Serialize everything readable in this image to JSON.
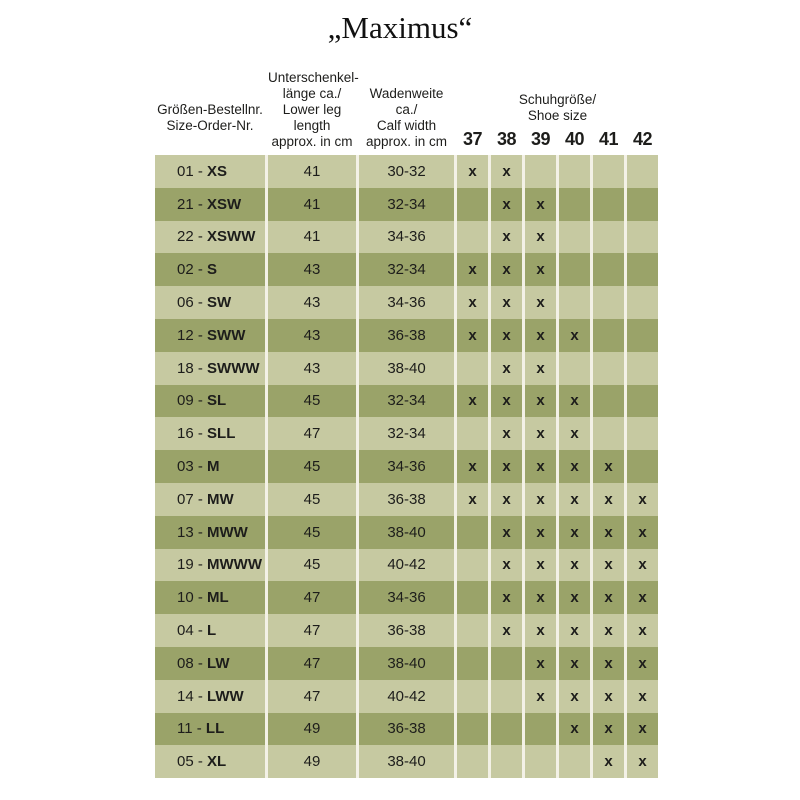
{
  "title": "„Maximus“",
  "label_separator": " - ",
  "colors": {
    "row_light": "#c6c9a1",
    "row_dark": "#9aa369",
    "separator": "#f3f1e6",
    "text": "#1d1d1b"
  },
  "chart_data": {
    "type": "table",
    "title": "„Maximus“",
    "header": {
      "col1_lines": [
        "Größen-Bestellnr.",
        "Size-Order-Nr."
      ],
      "col2_lines": [
        "Unterschenkel-",
        "länge ca./",
        "Lower leg length",
        "approx. in cm"
      ],
      "col3_lines": [
        "Wadenweite ca./",
        "Calf width",
        "approx. in cm"
      ],
      "shoe_lines": [
        "Schuhgröße/",
        "Shoe size"
      ],
      "shoe_sizes": [
        "37",
        "38",
        "39",
        "40",
        "41",
        "42"
      ]
    },
    "rows": [
      {
        "order_nr": "01",
        "size_code": "XS",
        "leg_length": "41",
        "calf_width": "30-32",
        "marks": [
          "x",
          "x",
          "",
          "",
          "",
          ""
        ]
      },
      {
        "order_nr": "21",
        "size_code": "XSW",
        "leg_length": "41",
        "calf_width": "32-34",
        "marks": [
          "",
          "x",
          "x",
          "",
          "",
          ""
        ]
      },
      {
        "order_nr": "22",
        "size_code": "XSWW",
        "leg_length": "41",
        "calf_width": "34-36",
        "marks": [
          "",
          "x",
          "x",
          "",
          "",
          ""
        ]
      },
      {
        "order_nr": "02",
        "size_code": "S",
        "leg_length": "43",
        "calf_width": "32-34",
        "marks": [
          "x",
          "x",
          "x",
          "",
          "",
          ""
        ]
      },
      {
        "order_nr": "06",
        "size_code": "SW",
        "leg_length": "43",
        "calf_width": "34-36",
        "marks": [
          "x",
          "x",
          "x",
          "",
          "",
          ""
        ]
      },
      {
        "order_nr": "12",
        "size_code": "SWW",
        "leg_length": "43",
        "calf_width": "36-38",
        "marks": [
          "x",
          "x",
          "x",
          "x",
          "",
          ""
        ]
      },
      {
        "order_nr": "18",
        "size_code": "SWWW",
        "leg_length": "43",
        "calf_width": "38-40",
        "marks": [
          "",
          "x",
          "x",
          "",
          "",
          ""
        ]
      },
      {
        "order_nr": "09",
        "size_code": "SL",
        "leg_length": "45",
        "calf_width": "32-34",
        "marks": [
          "x",
          "x",
          "x",
          "x",
          "",
          ""
        ]
      },
      {
        "order_nr": "16",
        "size_code": "SLL",
        "leg_length": "47",
        "calf_width": "32-34",
        "marks": [
          "",
          "x",
          "x",
          "x",
          "",
          ""
        ]
      },
      {
        "order_nr": "03",
        "size_code": "M",
        "leg_length": "45",
        "calf_width": "34-36",
        "marks": [
          "x",
          "x",
          "x",
          "x",
          "x",
          ""
        ]
      },
      {
        "order_nr": "07",
        "size_code": "MW",
        "leg_length": "45",
        "calf_width": "36-38",
        "marks": [
          "x",
          "x",
          "x",
          "x",
          "x",
          "x"
        ]
      },
      {
        "order_nr": "13",
        "size_code": "MWW",
        "leg_length": "45",
        "calf_width": "38-40",
        "marks": [
          "",
          "x",
          "x",
          "x",
          "x",
          "x"
        ]
      },
      {
        "order_nr": "19",
        "size_code": "MWWW",
        "leg_length": "45",
        "calf_width": "40-42",
        "marks": [
          "",
          "x",
          "x",
          "x",
          "x",
          "x"
        ]
      },
      {
        "order_nr": "10",
        "size_code": "ML",
        "leg_length": "47",
        "calf_width": "34-36",
        "marks": [
          "",
          "x",
          "x",
          "x",
          "x",
          "x"
        ]
      },
      {
        "order_nr": "04",
        "size_code": "L",
        "leg_length": "47",
        "calf_width": "36-38",
        "marks": [
          "",
          "x",
          "x",
          "x",
          "x",
          "x"
        ]
      },
      {
        "order_nr": "08",
        "size_code": "LW",
        "leg_length": "47",
        "calf_width": "38-40",
        "marks": [
          "",
          "",
          "x",
          "x",
          "x",
          "x"
        ]
      },
      {
        "order_nr": "14",
        "size_code": "LWW",
        "leg_length": "47",
        "calf_width": "40-42",
        "marks": [
          "",
          "",
          "x",
          "x",
          "x",
          "x"
        ]
      },
      {
        "order_nr": "11",
        "size_code": "LL",
        "leg_length": "49",
        "calf_width": "36-38",
        "marks": [
          "",
          "",
          "",
          "x",
          "x",
          "x"
        ]
      },
      {
        "order_nr": "05",
        "size_code": "XL",
        "leg_length": "49",
        "calf_width": "38-40",
        "marks": [
          "",
          "",
          "",
          "",
          "x",
          "x"
        ]
      }
    ]
  }
}
